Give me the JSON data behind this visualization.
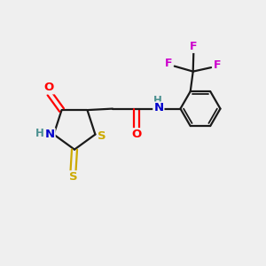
{
  "bg_color": "#efefef",
  "bond_color": "#1a1a1a",
  "colors": {
    "O": "#ff0000",
    "N": "#0000cc",
    "S": "#ccaa00",
    "F": "#cc00cc",
    "H": "#4a9090",
    "C": "#1a1a1a"
  },
  "lw": 1.6,
  "fs": 9.5
}
